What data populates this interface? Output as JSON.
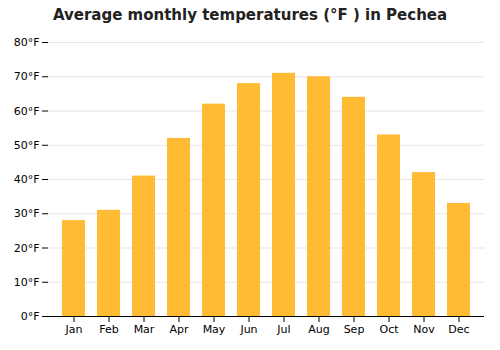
{
  "chart_data": {
    "type": "bar",
    "title": "Average monthly temperatures (°F ) in Pechea",
    "categories": [
      "Jan",
      "Feb",
      "Mar",
      "Apr",
      "May",
      "Jun",
      "Jul",
      "Aug",
      "Sep",
      "Oct",
      "Nov",
      "Dec"
    ],
    "values": [
      28,
      31,
      41,
      52,
      62,
      68,
      71,
      70,
      64,
      53,
      42,
      33
    ],
    "color": "#FFBB33",
    "ylim": [
      0,
      80
    ],
    "yticks": [
      {
        "value": 0,
        "label": "0°F"
      },
      {
        "value": 10,
        "label": "10°F"
      },
      {
        "value": 20,
        "label": "20°F"
      },
      {
        "value": 30,
        "label": "30°F"
      },
      {
        "value": 40,
        "label": "40°F"
      },
      {
        "value": 50,
        "label": "50°F"
      },
      {
        "value": 60,
        "label": "60°F"
      },
      {
        "value": 70,
        "label": "70°F"
      },
      {
        "value": 80,
        "label": "80°F"
      }
    ],
    "grid": true
  }
}
